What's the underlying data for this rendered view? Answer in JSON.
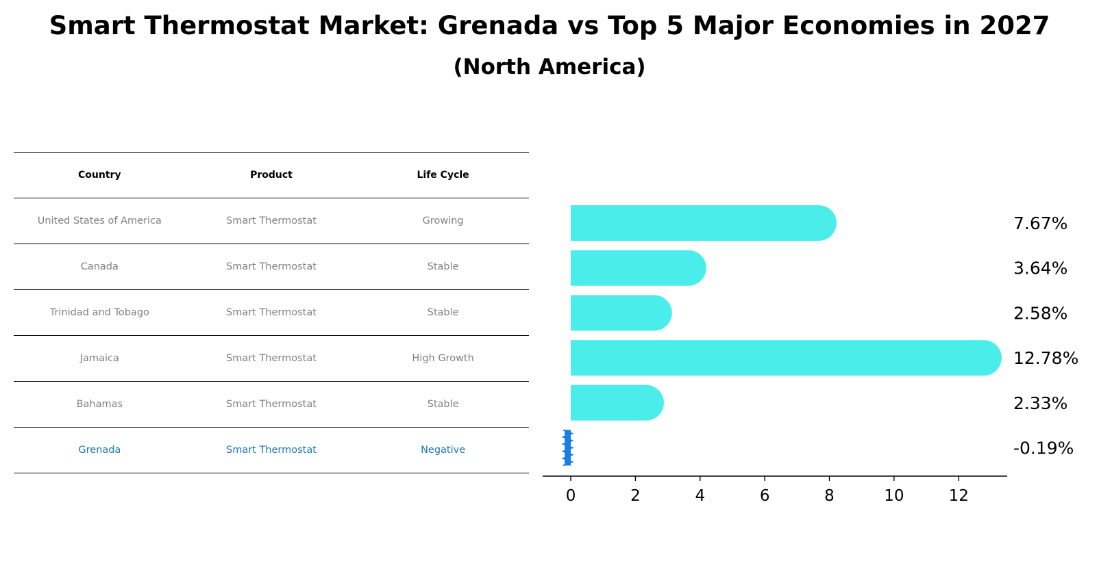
{
  "title": "Smart Thermostat Market: Grenada vs Top 5 Major Economies in 2027",
  "subtitle": "(North America)",
  "table": {
    "headers": [
      "Country",
      "Product",
      "Life Cycle"
    ],
    "rows": [
      [
        "United States of America",
        "Smart Thermostat",
        "Growing"
      ],
      [
        "Canada",
        "Smart Thermostat",
        "Stable"
      ],
      [
        "Trinidad and Tobago",
        "Smart Thermostat",
        "Stable"
      ],
      [
        "Jamaica",
        "Smart Thermostat",
        "High Growth"
      ],
      [
        "Bahamas",
        "Smart Thermostat",
        "Stable"
      ],
      [
        "Grenada",
        "Smart Thermostat",
        "Negative"
      ]
    ]
  },
  "colors": {
    "bar": "#4bedeb",
    "highlight": "#1f77b4",
    "negative_marker": "#1a7fe0"
  },
  "chart_data": {
    "type": "bar",
    "orientation": "horizontal",
    "categories": [
      "United States of America",
      "Canada",
      "Trinidad and Tobago",
      "Jamaica",
      "Bahamas",
      "Grenada"
    ],
    "values": [
      7.67,
      3.64,
      2.58,
      12.78,
      2.33,
      -0.19
    ],
    "value_labels": [
      "7.67%",
      "3.64%",
      "2.58%",
      "12.78%",
      "2.33%",
      "-0.19%"
    ],
    "xticks": [
      0,
      2,
      4,
      6,
      8,
      10,
      12
    ],
    "xlim": [
      -0.87,
      13.5
    ],
    "title": "Smart Thermostat Market: Grenada vs Top 5 Major Economies in 2027",
    "xlabel": "",
    "ylabel": ""
  }
}
